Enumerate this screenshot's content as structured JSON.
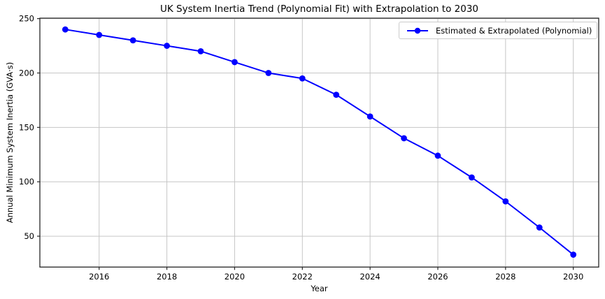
{
  "chart_data": {
    "type": "line",
    "title": "UK System Inertia Trend (Polynomial Fit) with Extrapolation to 2030",
    "xlabel": "Year",
    "ylabel": "Annual Minimum System Inertia (GVA·s)",
    "x": [
      2015,
      2016,
      2017,
      2018,
      2019,
      2020,
      2021,
      2022,
      2023,
      2024,
      2025,
      2026,
      2027,
      2028,
      2029,
      2030
    ],
    "series": [
      {
        "name": "Estimated & Extrapolated (Polynomial)",
        "values": [
          240,
          235,
          230,
          225,
          220,
          210,
          200,
          195,
          180,
          160,
          140,
          124,
          104,
          82,
          58,
          33
        ],
        "color": "#0000ff",
        "marker": "circle"
      }
    ],
    "xlim": [
      2014.25,
      2030.75
    ],
    "ylim": [
      21.6,
      250.4
    ],
    "x_ticks": [
      2016,
      2018,
      2020,
      2022,
      2024,
      2026,
      2028,
      2030
    ],
    "y_ticks": [
      50,
      100,
      150,
      200,
      250
    ],
    "grid": true,
    "legend_position": "upper right",
    "colors": {
      "grid": "#c6c6c6",
      "axis": "#262626",
      "text": "#000000",
      "background": "#ffffff",
      "legend_border": "#cccccc"
    }
  }
}
